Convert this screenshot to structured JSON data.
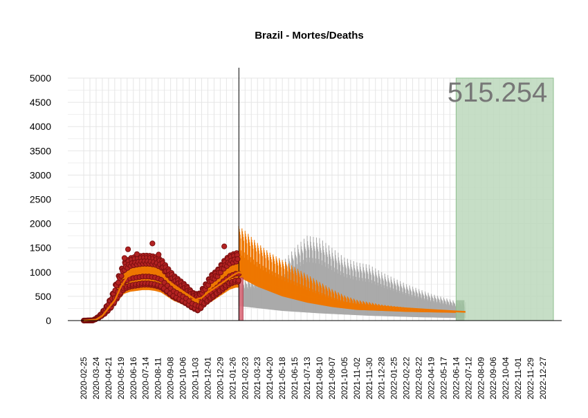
{
  "chart_data": {
    "type": "line",
    "title": "Brazil - Mortes/Deaths",
    "xlabel": "",
    "ylabel": "",
    "x_range": [
      "2020-02-25",
      "2022-12-27"
    ],
    "ylim": [
      0,
      5000
    ],
    "yticks": [
      0,
      500,
      1000,
      1500,
      2000,
      2500,
      3000,
      3500,
      4000,
      4500,
      5000
    ],
    "xticks": [
      "2020-02-25",
      "2020-03-24",
      "2020-04-21",
      "2020-05-19",
      "2020-06-16",
      "2020-07-14",
      "2020-08-11",
      "2020-09-08",
      "2020-10-06",
      "2020-11-03",
      "2020-12-01",
      "2020-12-29",
      "2021-01-26",
      "2021-02-23",
      "2021-03-23",
      "2021-04-20",
      "2021-05-18",
      "2021-06-15",
      "2021-07-13",
      "2021-08-10",
      "2021-09-07",
      "2021-10-05",
      "2021-11-02",
      "2021-11-30",
      "2021-12-28",
      "2022-01-25",
      "2022-02-22",
      "2022-03-22",
      "2022-04-19",
      "2022-05-17",
      "2022-06-14",
      "2022-07-12",
      "2022-08-09",
      "2022-09-06",
      "2022-10-04",
      "2022-11-01",
      "2022-11-29",
      "2022-12-27"
    ],
    "cutoff_date": "2021-02-09",
    "total_label": "515.254",
    "grid": true,
    "colors": {
      "observed_points": "#b22222",
      "observed_points_stroke": "#7a0f0f",
      "smoothed": "#ee7700",
      "forecast_band": "#aaaaaa",
      "projection_area": "#bcd8bc",
      "projection_border": "#8fbf8f",
      "cutoff_bar": "#d96b7a"
    },
    "observed": {
      "weekly_keypoints": [
        {
          "date": "2020-02-25",
          "weekday": 0,
          "weekend": 0
        },
        {
          "date": "2020-03-17",
          "weekday": 5,
          "weekend": 3
        },
        {
          "date": "2020-03-31",
          "weekday": 90,
          "weekend": 60
        },
        {
          "date": "2020-04-14",
          "weekday": 250,
          "weekend": 150
        },
        {
          "date": "2020-04-28",
          "weekday": 480,
          "weekend": 280
        },
        {
          "date": "2020-05-12",
          "weekday": 850,
          "weekend": 480
        },
        {
          "date": "2020-05-26",
          "weekday": 1150,
          "weekend": 650
        },
        {
          "date": "2020-06-09",
          "weekday": 1250,
          "weekend": 700
        },
        {
          "date": "2020-06-23",
          "weekday": 1280,
          "weekend": 720
        },
        {
          "date": "2020-07-07",
          "weekday": 1300,
          "weekend": 740
        },
        {
          "date": "2020-07-21",
          "weekday": 1300,
          "weekend": 740
        },
        {
          "date": "2020-08-04",
          "weekday": 1280,
          "weekend": 720
        },
        {
          "date": "2020-08-18",
          "weekday": 1220,
          "weekend": 680
        },
        {
          "date": "2020-09-01",
          "weekday": 1050,
          "weekend": 580
        },
        {
          "date": "2020-09-15",
          "weekday": 900,
          "weekend": 480
        },
        {
          "date": "2020-09-29",
          "weekday": 800,
          "weekend": 420
        },
        {
          "date": "2020-10-13",
          "weekday": 700,
          "weekend": 350
        },
        {
          "date": "2020-10-27",
          "weekday": 560,
          "weekend": 260
        },
        {
          "date": "2020-11-10",
          "weekday": 520,
          "weekend": 200
        },
        {
          "date": "2020-11-24",
          "weekday": 700,
          "weekend": 350
        },
        {
          "date": "2020-12-08",
          "weekday": 900,
          "weekend": 450
        },
        {
          "date": "2020-12-22",
          "weekday": 1000,
          "weekend": 550
        },
        {
          "date": "2021-01-05",
          "weekday": 1180,
          "weekend": 650
        },
        {
          "date": "2021-01-19",
          "weekday": 1300,
          "weekend": 750
        },
        {
          "date": "2021-02-02",
          "weekday": 1350,
          "weekend": 800
        },
        {
          "date": "2021-02-09",
          "weekday": 1350,
          "weekend": 800
        }
      ],
      "notable_peaks": [
        {
          "date": "2020-05-27",
          "value": 1290
        },
        {
          "date": "2020-06-04",
          "value": 1470
        },
        {
          "date": "2020-06-24",
          "value": 1370
        },
        {
          "date": "2020-07-29",
          "value": 1590
        },
        {
          "date": "2020-08-12",
          "value": 1360
        },
        {
          "date": "2021-01-07",
          "value": 1530
        }
      ]
    },
    "smoothed_observed": [
      {
        "date": "2020-02-25",
        "value": 0
      },
      {
        "date": "2020-03-24",
        "value": 20
      },
      {
        "date": "2020-04-07",
        "value": 100
      },
      {
        "date": "2020-04-21",
        "value": 260
      },
      {
        "date": "2020-05-05",
        "value": 420
      },
      {
        "date": "2020-05-19",
        "value": 700
      },
      {
        "date": "2020-06-02",
        "value": 900
      },
      {
        "date": "2020-06-16",
        "value": 960
      },
      {
        "date": "2020-07-14",
        "value": 1020
      },
      {
        "date": "2020-08-11",
        "value": 980
      },
      {
        "date": "2020-09-08",
        "value": 780
      },
      {
        "date": "2020-10-06",
        "value": 600
      },
      {
        "date": "2020-11-03",
        "value": 430
      },
      {
        "date": "2020-11-17",
        "value": 470
      },
      {
        "date": "2020-12-01",
        "value": 580
      },
      {
        "date": "2020-12-29",
        "value": 750
      },
      {
        "date": "2021-01-26",
        "value": 930
      },
      {
        "date": "2021-02-09",
        "value": 1000
      }
    ],
    "forecast_mean": [
      {
        "date": "2021-02-09",
        "value": 1000
      },
      {
        "date": "2021-03-23",
        "value": 850
      },
      {
        "date": "2021-05-18",
        "value": 650
      },
      {
        "date": "2021-07-13",
        "value": 500
      },
      {
        "date": "2021-09-07",
        "value": 400
      },
      {
        "date": "2021-11-02",
        "value": 330
      },
      {
        "date": "2021-12-28",
        "value": 290
      },
      {
        "date": "2022-02-22",
        "value": 250
      },
      {
        "date": "2022-04-19",
        "value": 220
      },
      {
        "date": "2022-06-14",
        "value": 190
      },
      {
        "date": "2022-07-05",
        "value": 180
      }
    ],
    "forecast_orange_upper": [
      {
        "date": "2021-02-09",
        "value": 1950
      },
      {
        "date": "2021-02-23",
        "value": 1850
      },
      {
        "date": "2021-03-23",
        "value": 1600
      },
      {
        "date": "2021-04-20",
        "value": 1400
      },
      {
        "date": "2021-05-18",
        "value": 1250
      },
      {
        "date": "2021-06-15",
        "value": 1100
      },
      {
        "date": "2021-07-13",
        "value": 950
      },
      {
        "date": "2021-08-10",
        "value": 800
      },
      {
        "date": "2021-09-07",
        "value": 650
      },
      {
        "date": "2021-10-05",
        "value": 520
      },
      {
        "date": "2021-11-02",
        "value": 430
      },
      {
        "date": "2021-12-28",
        "value": 330
      },
      {
        "date": "2022-02-22",
        "value": 270
      },
      {
        "date": "2022-04-19",
        "value": 230
      },
      {
        "date": "2022-06-14",
        "value": 200
      },
      {
        "date": "2022-07-05",
        "value": 190
      }
    ],
    "forecast_orange_lower": [
      {
        "date": "2021-02-09",
        "value": 900
      },
      {
        "date": "2021-03-23",
        "value": 700
      },
      {
        "date": "2021-05-18",
        "value": 500
      },
      {
        "date": "2021-07-13",
        "value": 370
      },
      {
        "date": "2021-09-07",
        "value": 280
      },
      {
        "date": "2021-11-02",
        "value": 220
      },
      {
        "date": "2021-12-28",
        "value": 200
      },
      {
        "date": "2022-02-22",
        "value": 180
      },
      {
        "date": "2022-04-19",
        "value": 170
      },
      {
        "date": "2022-06-14",
        "value": 160
      },
      {
        "date": "2022-07-05",
        "value": 160
      }
    ],
    "forecast_gray_upper": [
      {
        "date": "2021-02-09",
        "value": 800
      },
      {
        "date": "2021-03-23",
        "value": 900
      },
      {
        "date": "2021-05-18",
        "value": 1200
      },
      {
        "date": "2021-06-15",
        "value": 1500
      },
      {
        "date": "2021-07-13",
        "value": 1750
      },
      {
        "date": "2021-08-10",
        "value": 1700
      },
      {
        "date": "2021-09-07",
        "value": 1500
      },
      {
        "date": "2021-10-05",
        "value": 1300
      },
      {
        "date": "2021-11-02",
        "value": 1200
      },
      {
        "date": "2021-11-30",
        "value": 1150
      },
      {
        "date": "2021-12-28",
        "value": 1000
      },
      {
        "date": "2022-02-22",
        "value": 750
      },
      {
        "date": "2022-04-19",
        "value": 550
      },
      {
        "date": "2022-06-14",
        "value": 400
      },
      {
        "date": "2022-07-05",
        "value": 380
      }
    ],
    "forecast_gray_lower": [
      {
        "date": "2021-02-09",
        "value": 300
      },
      {
        "date": "2021-05-18",
        "value": 200
      },
      {
        "date": "2021-08-10",
        "value": 150
      },
      {
        "date": "2021-11-30",
        "value": 100
      },
      {
        "date": "2022-03-22",
        "value": 70
      },
      {
        "date": "2022-07-05",
        "value": 50
      }
    ],
    "cutoff_bar": {
      "date_start": "2021-02-09",
      "date_end": "2021-02-16",
      "value": 880
    },
    "projection_region": {
      "date_start": "2022-06-14",
      "date_end": "2022-12-27"
    }
  }
}
